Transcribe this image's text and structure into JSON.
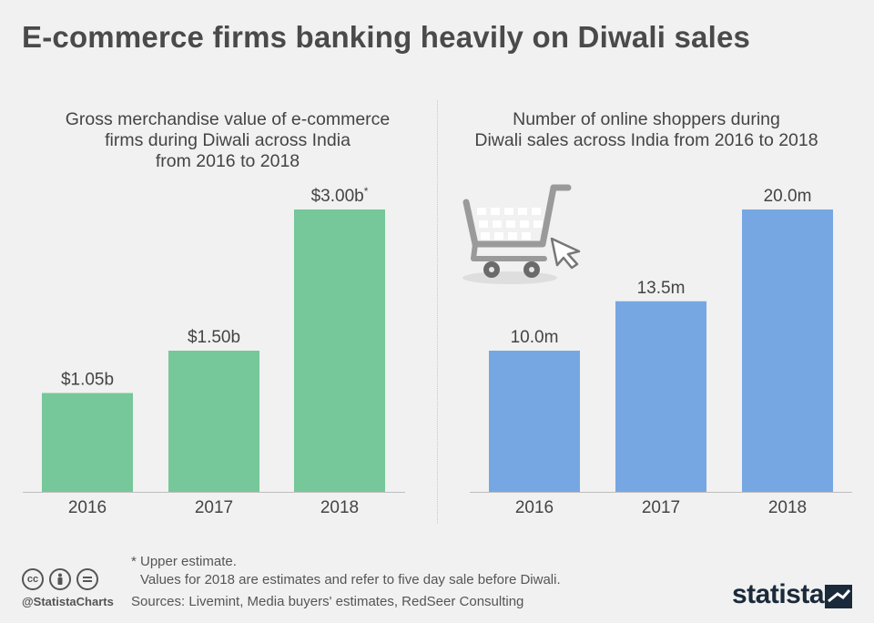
{
  "title": "E-commerce firms banking heavily on Diwali sales",
  "chart_data": [
    {
      "type": "bar",
      "title": "Gross merchandise value of e-commerce firms during Diwali across India from 2016 to 2018",
      "title_lines": [
        "Gross merchandise value of e-commerce",
        "firms during Diwali across India",
        "from 2016 to 2018"
      ],
      "categories": [
        "2016",
        "2017",
        "2018"
      ],
      "values": [
        1.05,
        1.5,
        3.0
      ],
      "data_labels": [
        "$1.05b",
        "$1.50b",
        "$3.00b"
      ],
      "annotation_marker": "*",
      "color": "#76c799",
      "ylim": [
        0,
        3.0
      ],
      "xlabel": "",
      "ylabel": ""
    },
    {
      "type": "bar",
      "title": "Number of online shoppers during Diwali sales across India from 2016 to 2018",
      "title_lines": [
        "Number of online shoppers during",
        "Diwali sales across India from 2016 to 2018"
      ],
      "categories": [
        "2016",
        "2017",
        "2018"
      ],
      "values": [
        10.0,
        13.5,
        20.0
      ],
      "data_labels": [
        "10.0m",
        "13.5m",
        "20.0m"
      ],
      "color": "#76a7e3",
      "ylim": [
        0,
        20.0
      ],
      "xlabel": "",
      "ylabel": ""
    }
  ],
  "footnote": {
    "line1": "* Upper estimate.",
    "line2": "Values for 2018 are estimates and refer to five day sale before Diwali."
  },
  "sources": "Sources: Livemint, Media buyers' estimates, RedSeer Consulting",
  "handle": "@StatistaCharts",
  "brand": "statista",
  "icons": [
    "cart-icon",
    "cursor-icon",
    "cc-icon",
    "by-icon",
    "nd-icon"
  ]
}
